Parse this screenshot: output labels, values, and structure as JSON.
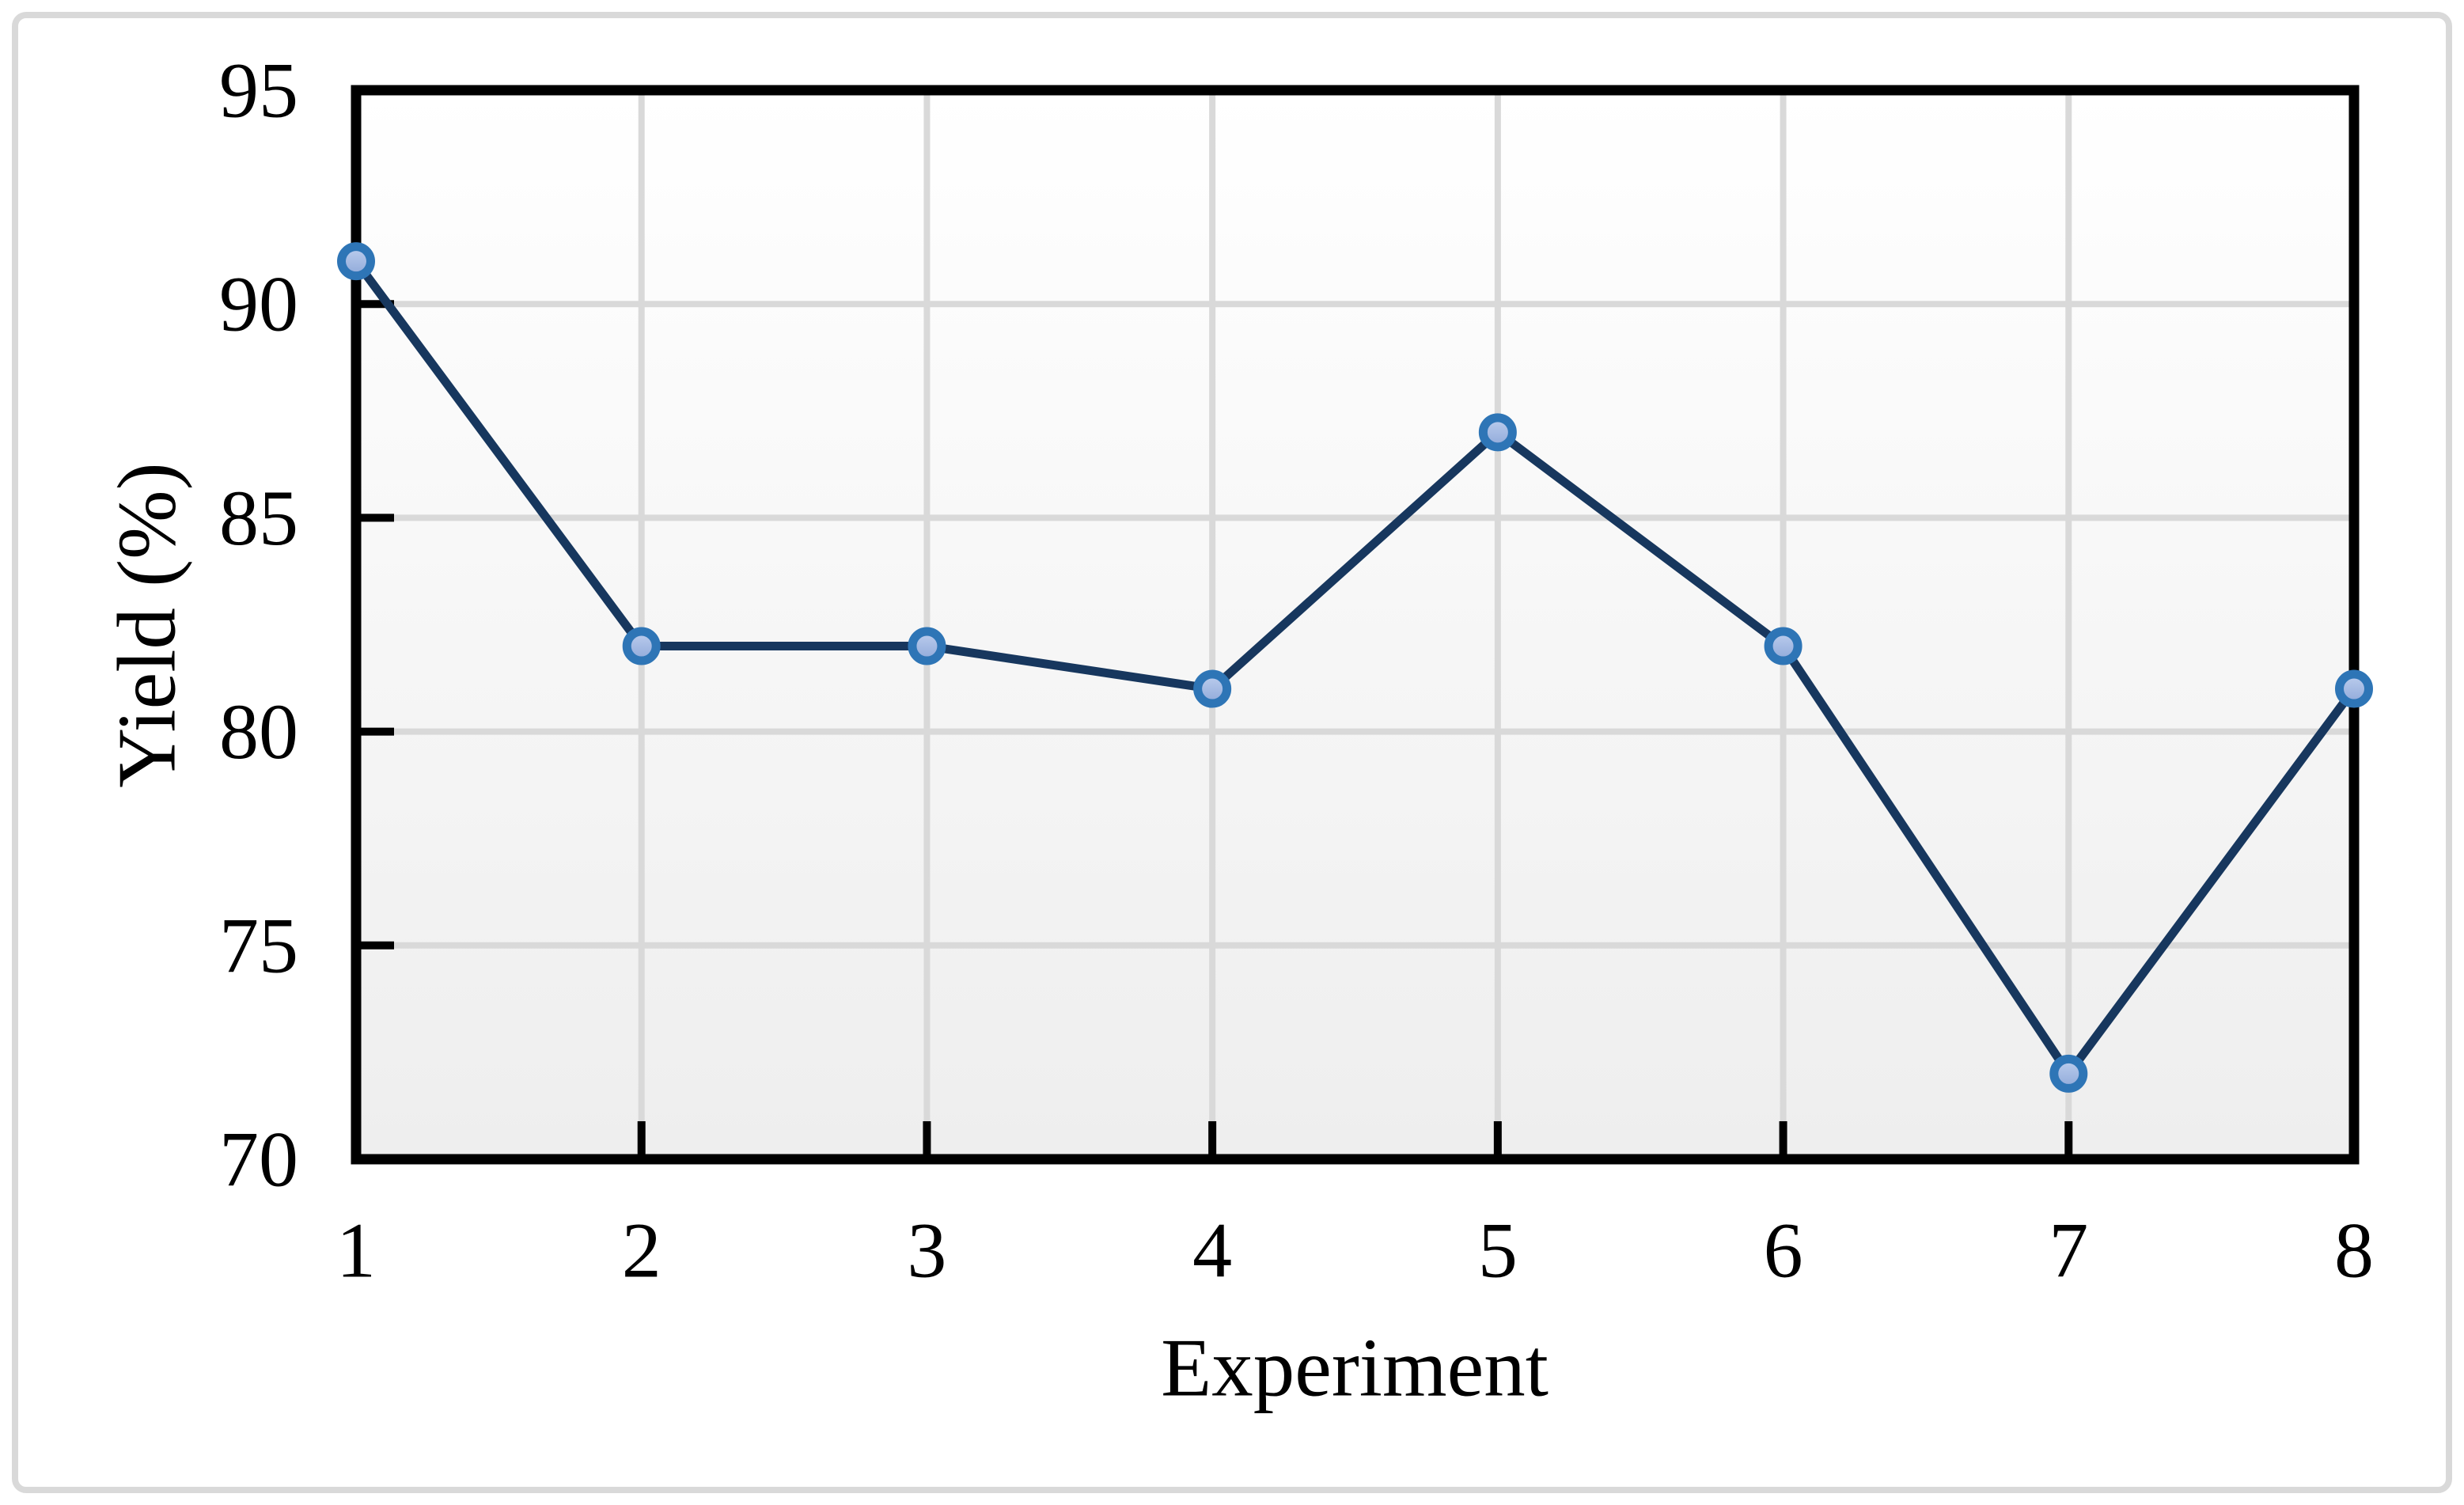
{
  "figure": {
    "kind": "excel-style line chart figure",
    "background": "#ffffff",
    "border_color": "#d9d9d9"
  },
  "chart_data": {
    "type": "line",
    "title": "",
    "xlabel": "Experiment",
    "ylabel": "Yield (%)",
    "categories": [
      1,
      2,
      3,
      4,
      5,
      6,
      7,
      8
    ],
    "series": [
      {
        "name": "Yield",
        "values": [
          91,
          82,
          82,
          81,
          87,
          82,
          72,
          81
        ]
      }
    ],
    "ylim": [
      70,
      95
    ],
    "y_ticks": [
      70,
      75,
      80,
      85,
      90,
      95
    ],
    "x_ticks": [
      1,
      2,
      3,
      4,
      5,
      6,
      7,
      8
    ],
    "grid": "both",
    "legend": "none",
    "colors": {
      "line": "#17375e",
      "marker_stroke": "#2e75b6",
      "marker_fill_top": "#bdceee",
      "marker_fill_bottom": "#8fa9d9",
      "gridline": "#d9d9d9",
      "plot_border": "#000000",
      "tick": "#000000",
      "plot_bg_top": "#ffffff",
      "plot_bg_bottom": "#eeeeee"
    }
  }
}
